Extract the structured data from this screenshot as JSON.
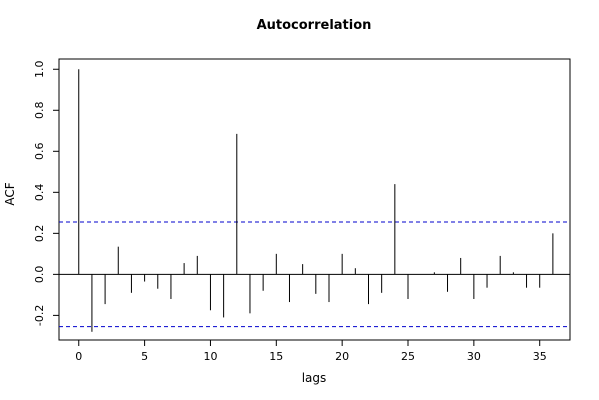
{
  "chart_data": {
    "type": "bar",
    "title": "Autocorrelation",
    "xlabel": "lags",
    "ylabel": "ACF",
    "xlim": [
      -1.5,
      37.3
    ],
    "ylim": [
      -0.32,
      1.05
    ],
    "x_ticks": [
      0,
      5,
      10,
      15,
      20,
      25,
      30,
      35
    ],
    "y_ticks": [
      -0.2,
      0.0,
      0.2,
      0.4,
      0.6,
      0.8,
      1.0
    ],
    "y_tick_labels": [
      "-0.2",
      "0.0",
      "0.2",
      "0.4",
      "0.6",
      "0.8",
      "1.0"
    ],
    "lags": [
      0,
      1,
      2,
      3,
      4,
      5,
      6,
      7,
      8,
      9,
      10,
      11,
      12,
      13,
      14,
      15,
      16,
      17,
      18,
      19,
      20,
      21,
      22,
      23,
      24,
      25,
      26,
      27,
      28,
      29,
      30,
      31,
      32,
      33,
      34,
      35,
      36
    ],
    "values": [
      1.0,
      -0.28,
      -0.145,
      0.135,
      -0.09,
      -0.035,
      -0.07,
      -0.12,
      0.055,
      0.09,
      -0.175,
      -0.21,
      0.685,
      -0.19,
      -0.08,
      0.1,
      -0.135,
      0.05,
      -0.095,
      -0.135,
      0.1,
      0.03,
      -0.145,
      -0.09,
      0.44,
      -0.12,
      0.0,
      0.01,
      -0.085,
      0.08,
      -0.12,
      -0.065,
      0.09,
      0.01,
      -0.065,
      -0.065,
      0.2
    ],
    "confidence_bound": 0.255,
    "grid": false,
    "colors": {
      "bars": "#000000",
      "confidence": "#0000cd",
      "zero_line": "#000000"
    }
  }
}
